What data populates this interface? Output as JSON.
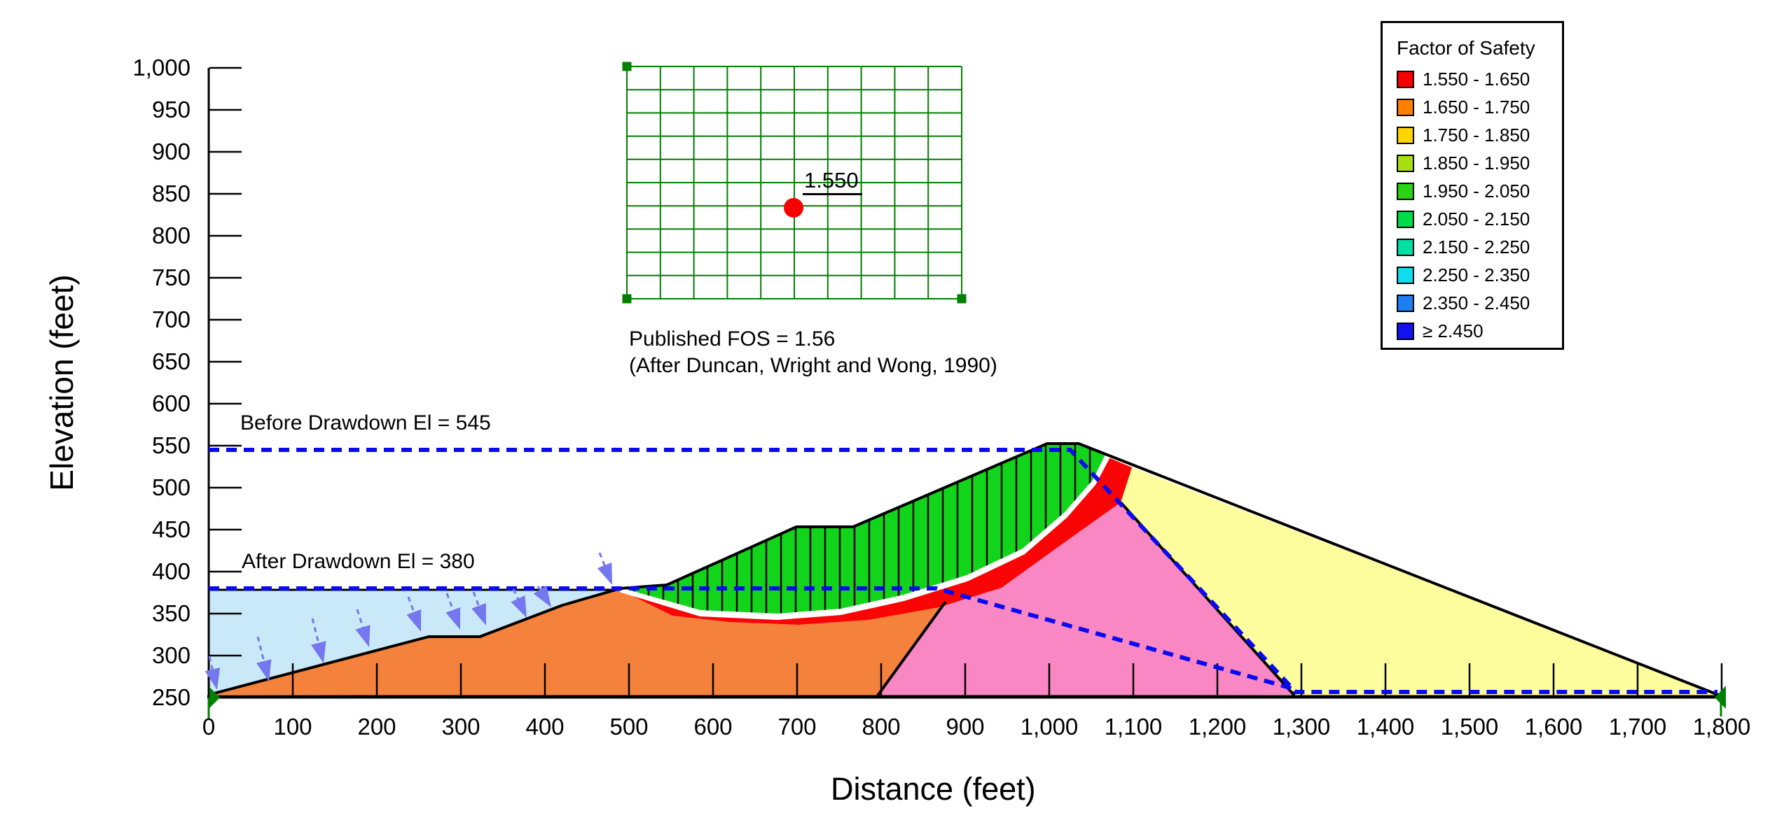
{
  "figure": {
    "x_axis": {
      "title": "Distance (feet)",
      "ticks": [
        "0",
        "100",
        "200",
        "300",
        "400",
        "500",
        "600",
        "700",
        "800",
        "900",
        "1,000",
        "1,100",
        "1,200",
        "1,300",
        "1,400",
        "1,500",
        "1,600",
        "1,700",
        "1,800"
      ]
    },
    "y_axis": {
      "title": "Elevation (feet)",
      "ticks": [
        "250",
        "300",
        "350",
        "400",
        "450",
        "500",
        "550",
        "600",
        "650",
        "700",
        "750",
        "800",
        "850",
        "900",
        "950",
        "1,000"
      ]
    },
    "legend": {
      "title": "Factor of Safety",
      "entries": [
        {
          "color": "#F80000",
          "label": "1.550 - 1.650"
        },
        {
          "color": "#FF8000",
          "label": "1.650 - 1.750"
        },
        {
          "color": "#FFD500",
          "label": "1.750 - 1.850"
        },
        {
          "color": "#A8DF10",
          "label": "1.850 - 1.950"
        },
        {
          "color": "#28D414",
          "label": "1.950 - 2.050"
        },
        {
          "color": "#00DC48",
          "label": "2.050 - 2.150"
        },
        {
          "color": "#00DFA4",
          "label": "2.150 - 2.250"
        },
        {
          "color": "#10DCF0",
          "label": "2.250 - 2.350"
        },
        {
          "color": "#1E7FF2",
          "label": "2.350 - 2.450"
        },
        {
          "color": "#1212EE",
          "label": "≥ 2.450"
        }
      ]
    },
    "annotations": {
      "before_drawdown": "Before Drawdown El = 545",
      "after_drawdown": "After Drawdown El = 380",
      "published_fos": "Published FOS = 1.56",
      "citation": "(After Duncan, Wright and Wong, 1990)",
      "grid_label": "1.550"
    }
  },
  "colors": {
    "water": "#C9E9F8",
    "upstream_shell": "#F5823C",
    "core": "#F987C3",
    "downstream_shell": "#FDFD9E",
    "slide_mass": "#12D41A",
    "critical_band": "#FA0505",
    "slip_line": "#FFFFFF",
    "dashed_line": "#0A0AF0",
    "arrow": "#7477EE",
    "grid_green": "#008000",
    "marker_green": "#008000",
    "dot_red": "#F90000",
    "axis_black": "#000000"
  },
  "chart_data": {
    "type": "area",
    "subtype": "slope-stability-cross-section",
    "xlabel": "Distance (feet)",
    "ylabel": "Elevation (feet)",
    "xlim": [
      0,
      1800
    ],
    "ylim": [
      250,
      1000
    ],
    "x_tick_step": 100,
    "y_tick_step": 50,
    "grid": false,
    "legend_position": "top-right",
    "legend_title": "Factor of Safety",
    "fos_bands": [
      {
        "range": "1.550 - 1.650",
        "color": "#F80000"
      },
      {
        "range": "1.650 - 1.750",
        "color": "#FF8000"
      },
      {
        "range": "1.750 - 1.850",
        "color": "#FFD500"
      },
      {
        "range": "1.850 - 1.950",
        "color": "#A8DF10"
      },
      {
        "range": "1.950 - 2.050",
        "color": "#28D414"
      },
      {
        "range": "2.050 - 2.150",
        "color": "#00DC48"
      },
      {
        "range": "2.150 - 2.250",
        "color": "#00DFA4"
      },
      {
        "range": "2.250 - 2.350",
        "color": "#10DCF0"
      },
      {
        "range": "2.350 - 2.450",
        "color": "#1E7FF2"
      },
      {
        "range": "≥ 2.450",
        "color": "#1212EE"
      }
    ],
    "water_levels_ft": {
      "before_drawdown_el": 545,
      "after_drawdown_el": 380
    },
    "critical_factor_of_safety": 1.55,
    "published_fos": 1.56,
    "dam_surface_profile_ft": [
      [
        0,
        250
      ],
      [
        262,
        322
      ],
      [
        322,
        322
      ],
      [
        487,
        381
      ],
      [
        545,
        381
      ],
      [
        700,
        452
      ],
      [
        767,
        452
      ],
      [
        998,
        552
      ],
      [
        1035,
        552
      ],
      [
        1800,
        250
      ]
    ],
    "core_outline_ft": [
      [
        796,
        250
      ],
      [
        877,
        366
      ],
      [
        1085,
        482
      ],
      [
        1292,
        250
      ]
    ],
    "critical_slip_surface_ft": {
      "entry": [
        490,
        381
      ],
      "lowest": [
        700,
        347
      ],
      "exit": [
        1068,
        537
      ]
    },
    "regions": [
      {
        "name": "reservoir water (after drawdown)",
        "color": "#C9E9F8"
      },
      {
        "name": "upstream shell / foundation",
        "color": "#F5823C"
      },
      {
        "name": "clay core",
        "color": "#F987C3"
      },
      {
        "name": "downstream shell",
        "color": "#FDFD9E"
      },
      {
        "name": "sliding mass with slices",
        "color": "#12D41A"
      },
      {
        "name": "critical slip surface band",
        "color": "#FA0505"
      }
    ]
  }
}
